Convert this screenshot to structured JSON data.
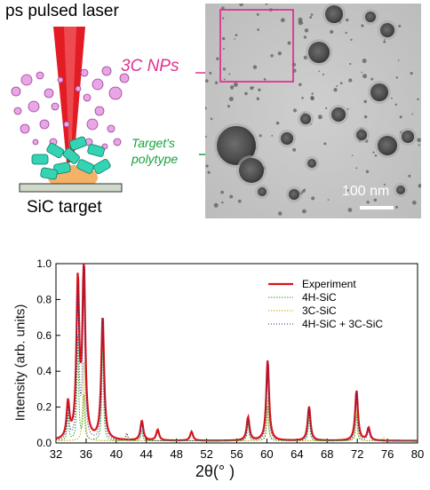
{
  "schematic": {
    "laser_label": "ps pulsed laser",
    "target_label": "SiC target",
    "nps_label": "3C NPs",
    "polytype_label_line1": "Target's",
    "polytype_label_line2": "polytype",
    "scale_bar_label": "100 nm",
    "colors": {
      "laser": "#e31b23",
      "nanoparticles": "#e9a6e6",
      "target_fragments": "#33d3b3",
      "nps_accent": "#e0338f",
      "polytype_accent": "#15a33c"
    }
  },
  "chart_data": {
    "type": "line",
    "xlabel": "2θ(° )",
    "ylabel": "Intensity (arb. units)",
    "xlim": [
      32,
      80
    ],
    "ylim": [
      0,
      1.0
    ],
    "xticks": [
      "32",
      "36",
      "40",
      "44",
      "48",
      "52",
      "56",
      "60",
      "64",
      "68",
      "72",
      "76",
      "80"
    ],
    "yticks": [
      "0.0",
      "0.2",
      "0.4",
      "0.6",
      "0.8",
      "1.0"
    ],
    "legend": [
      "Experiment",
      "4H-SiC",
      "3C-SiC",
      "4H-SiC + 3C-SiC"
    ],
    "legend_position": "top-right",
    "series": [
      {
        "name": "Experiment",
        "color": "#d7141d",
        "peaks": [
          [
            33.6,
            0.2
          ],
          [
            34.9,
            0.87
          ],
          [
            35.7,
            0.97
          ],
          [
            38.2,
            0.69
          ],
          [
            43.4,
            0.11
          ],
          [
            45.5,
            0.06
          ],
          [
            50.0,
            0.05
          ],
          [
            57.5,
            0.13
          ],
          [
            60.1,
            0.45
          ],
          [
            65.6,
            0.19
          ],
          [
            71.9,
            0.28
          ],
          [
            73.5,
            0.07
          ]
        ]
      },
      {
        "name": "4H-SiC",
        "color": "#3a9b2d",
        "peaks": [
          [
            33.6,
            0.15
          ],
          [
            34.9,
            0.6
          ],
          [
            35.7,
            0.25
          ],
          [
            38.2,
            0.55
          ],
          [
            43.4,
            0.06
          ],
          [
            57.5,
            0.1
          ],
          [
            60.1,
            0.2
          ],
          [
            65.6,
            0.14
          ],
          [
            71.9,
            0.15
          ]
        ]
      },
      {
        "name": "3C-SiC",
        "color": "#c7b21a",
        "peaks": [
          [
            35.7,
            0.45
          ],
          [
            41.4,
            0.04
          ],
          [
            60.1,
            0.25
          ],
          [
            71.9,
            0.18
          ],
          [
            75.5,
            0.02
          ]
        ]
      },
      {
        "name": "4H-SiC + 3C-SiC",
        "color": "#1f2a8a",
        "peaks": [
          [
            33.6,
            0.18
          ],
          [
            34.9,
            0.85
          ],
          [
            35.7,
            0.95
          ],
          [
            38.2,
            0.7
          ],
          [
            41.4,
            0.04
          ],
          [
            43.4,
            0.1
          ],
          [
            57.5,
            0.12
          ],
          [
            60.1,
            0.44
          ],
          [
            65.6,
            0.18
          ],
          [
            71.9,
            0.27
          ],
          [
            73.5,
            0.06
          ]
        ]
      }
    ]
  }
}
